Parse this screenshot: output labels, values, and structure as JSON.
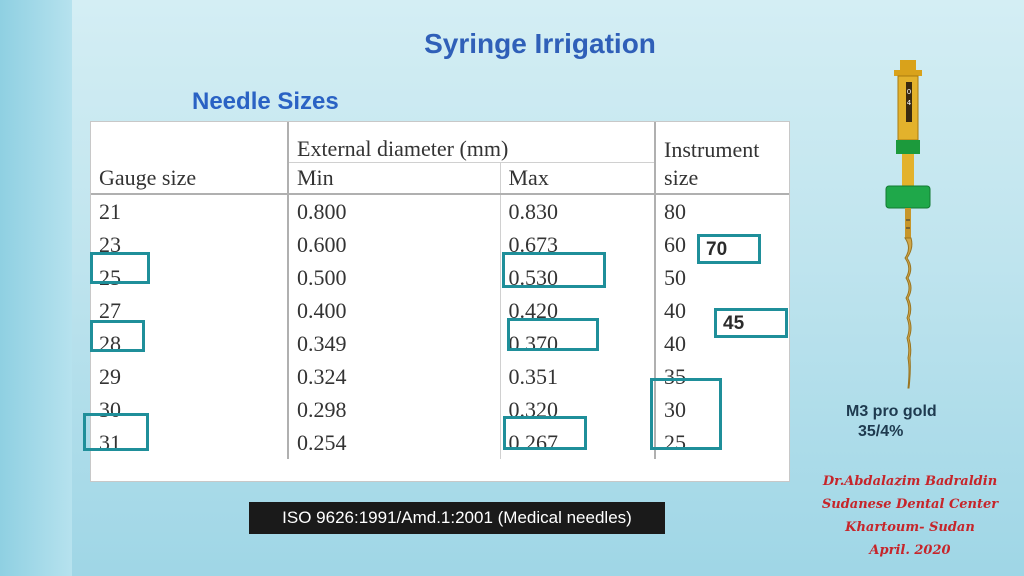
{
  "slide": {
    "title": "Syringe Irrigation",
    "section_title": "Needle  Sizes"
  },
  "table": {
    "header": {
      "external_diameter": "External diameter (mm)",
      "instrument_top": "Instrument",
      "gauge": "Gauge size",
      "min": "Min",
      "max": "Max",
      "instrument_bottom": "size"
    },
    "rows": [
      {
        "gauge": "21",
        "min": "0.800",
        "max": "0.830",
        "size": "80"
      },
      {
        "gauge": "23",
        "min": "0.600",
        "max": "0.673",
        "size": "60"
      },
      {
        "gauge": "25",
        "min": "0.500",
        "max": "0.530",
        "size": "50"
      },
      {
        "gauge": "27",
        "min": "0.400",
        "max": "0.420",
        "size": "40"
      },
      {
        "gauge": "28",
        "min": "0.349",
        "max": "0.370",
        "size": "40"
      },
      {
        "gauge": "29",
        "min": "0.324",
        "max": "0.351",
        "size": "35"
      },
      {
        "gauge": "30",
        "min": "0.298",
        "max": "0.320",
        "size": "30"
      },
      {
        "gauge": "31",
        "min": "0.254",
        "max": "0.267",
        "size": "25"
      }
    ]
  },
  "annotations": {
    "box_70": "70",
    "box_45": "45"
  },
  "file": {
    "caption_line1": "M3 pro gold",
    "caption_line2": "35/4%",
    "handle_marks": "0 4"
  },
  "author": {
    "line1": "Dr.Abdalazim Badraldin",
    "line2": "Sudanese Dental Center",
    "line3": "Khartoum- Sudan",
    "line4": "April.  2020"
  },
  "iso_banner": "ISO 9626:1991/Amd.1:2001 (Medical needles)",
  "colors": {
    "title": "#2f5fb8",
    "highlight": "#1f8f9a",
    "author": "#c6252a"
  }
}
